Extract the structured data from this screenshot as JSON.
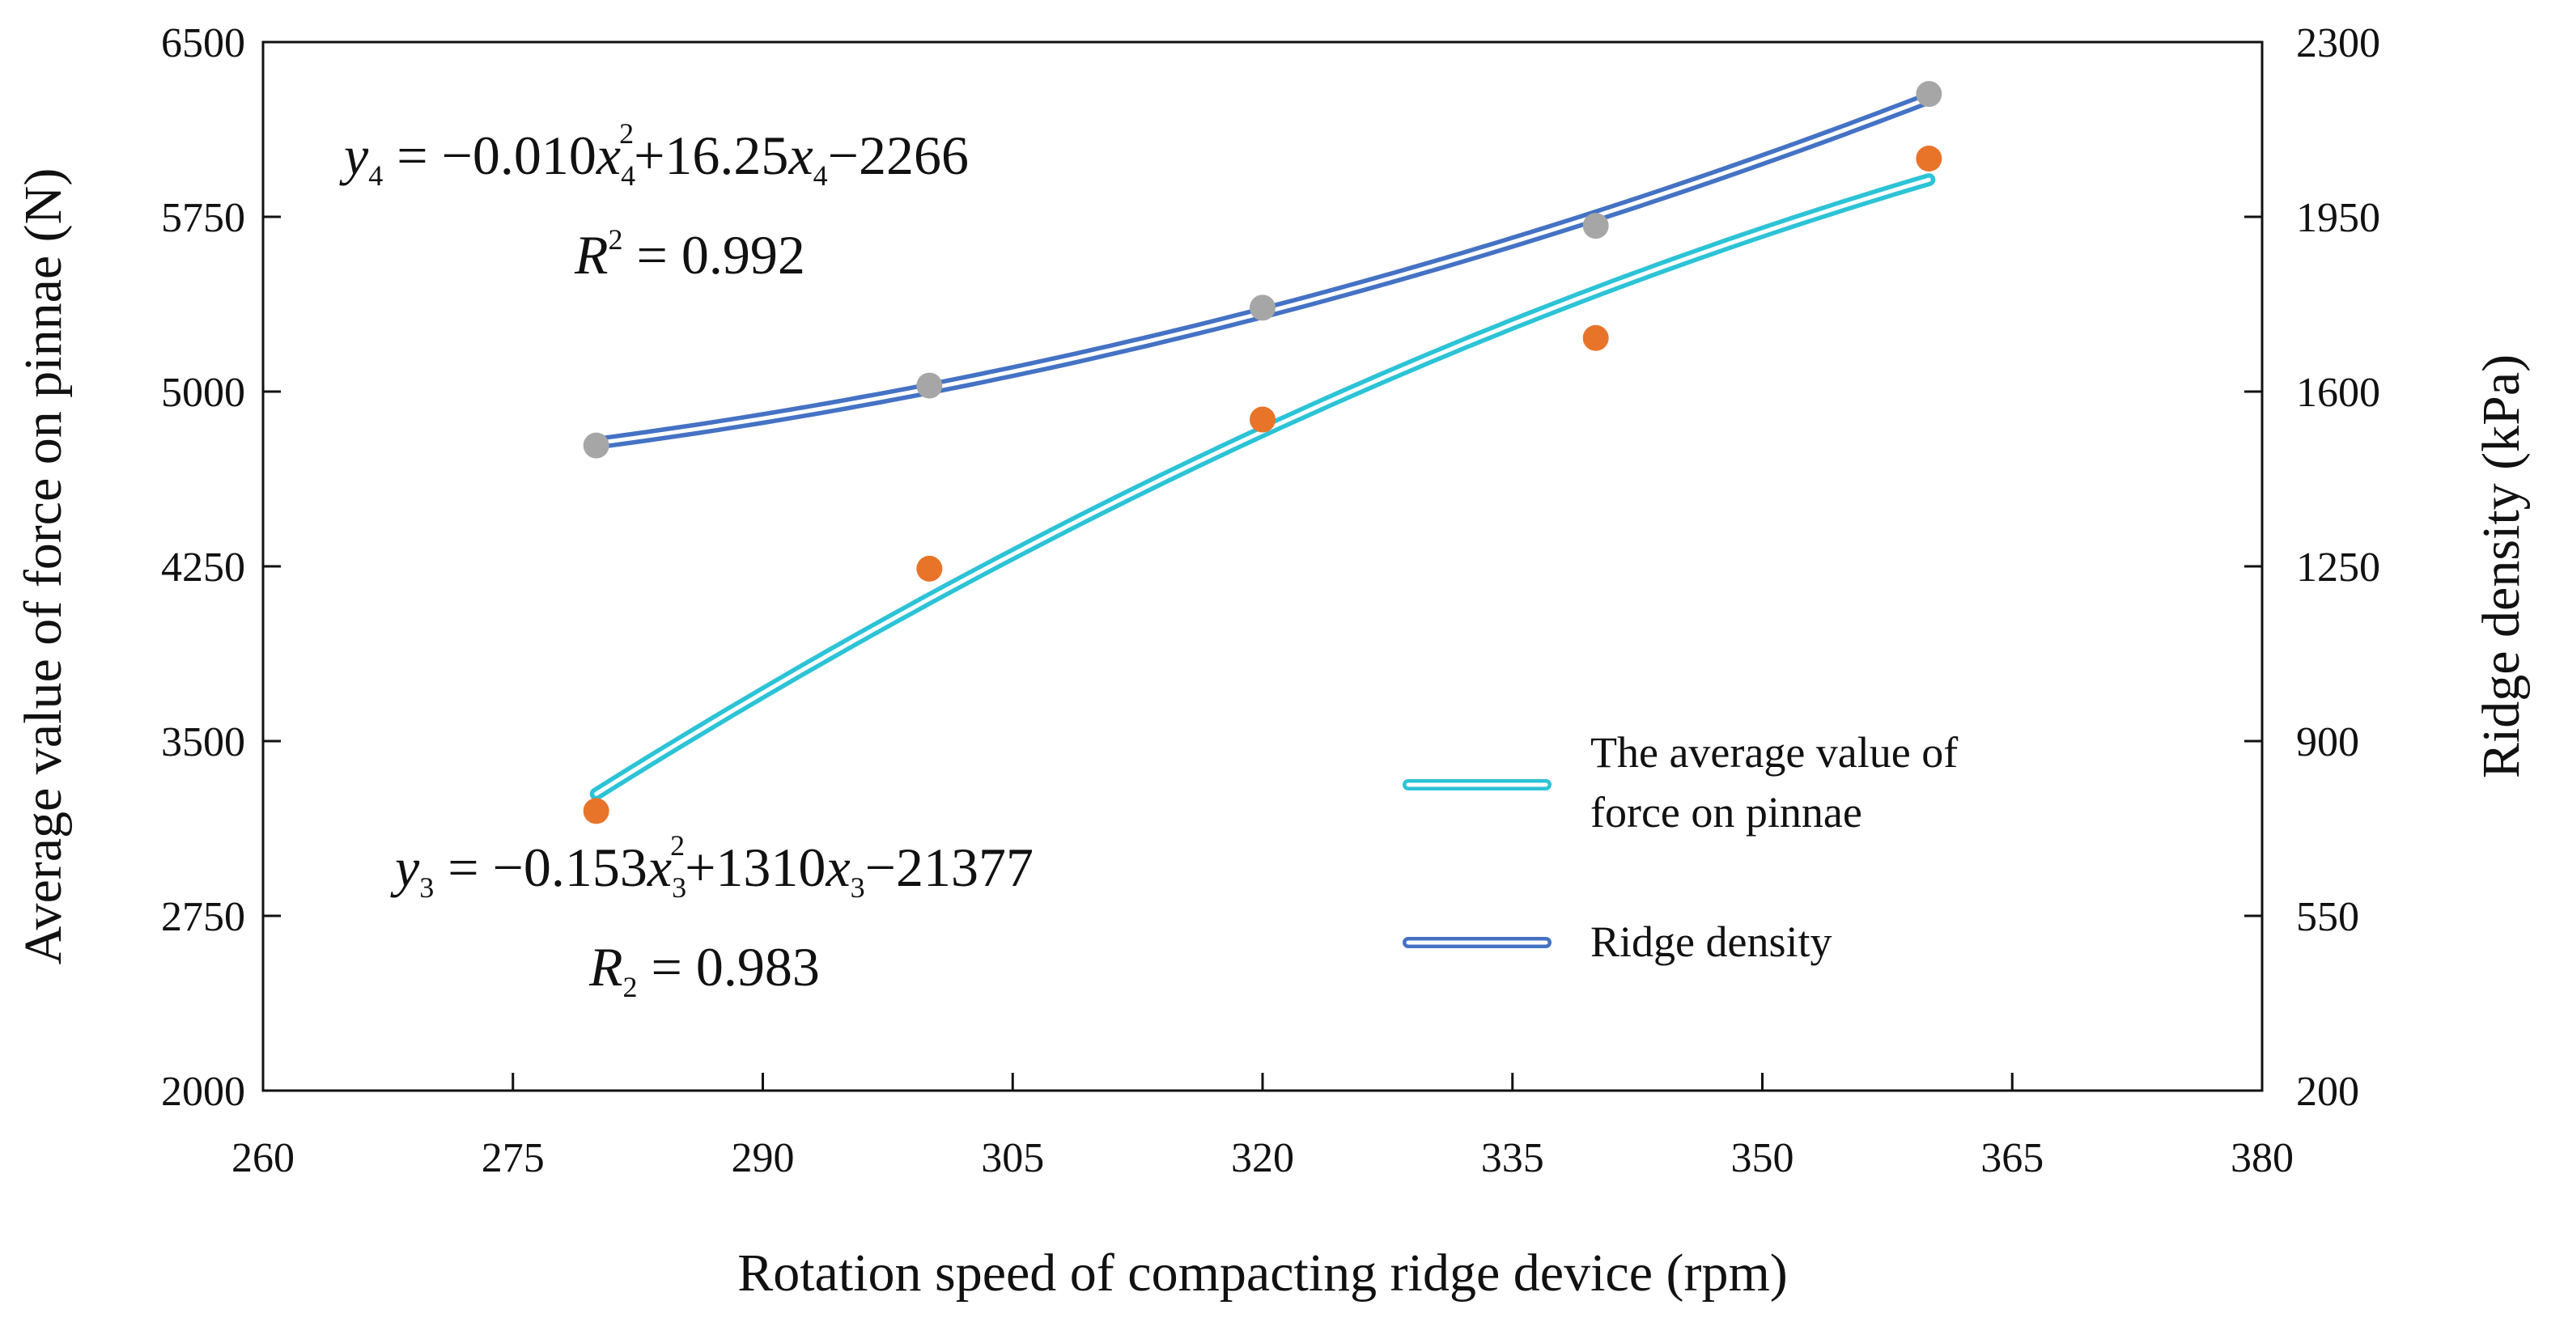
{
  "chart_data": {
    "type": "scatter",
    "title": "",
    "xlabel": "Rotation speed of compacting ridge device (rpm)",
    "ylabel": "Average value of force on pinnae (N)",
    "y2label": "Ridge density (kPa)",
    "xlim": [
      260,
      380
    ],
    "ylim": [
      2000,
      6500
    ],
    "y2lim": [
      200,
      2300
    ],
    "x_ticks": [
      "260",
      "275",
      "290",
      "305",
      "320",
      "335",
      "350",
      "365",
      "380"
    ],
    "y_ticks": [
      "2000",
      "2750",
      "3500",
      "4250",
      "5000",
      "5750",
      "6500"
    ],
    "y2_ticks": [
      "200",
      "550",
      "900",
      "1250",
      "1600",
      "1950",
      "2300"
    ],
    "grid": false,
    "legend_position": "bottom-right",
    "series": [
      {
        "name": "The average value of force on pinnae",
        "legend_lines": [
          "The average value of",
          "force on pinnae"
        ],
        "axis": "left",
        "marker_color": "#E8742A",
        "line_color": "#2CC3D6",
        "x": [
          280,
          300,
          320,
          340,
          360
        ],
        "values": [
          3200,
          4240,
          4880,
          5230,
          6000
        ],
        "fit": {
          "a": -0.153,
          "b": 1310,
          "c": -21377,
          "x_range": [
            280,
            360
          ]
        },
        "equation": {
          "y": "y",
          "sub": "3",
          "text1": " = −0.153",
          "x": "x",
          "sup": "2",
          "text2": "+1310",
          "text3": "−21377"
        },
        "r2": {
          "label": "R",
          "sub": "2",
          "text": " = 0.983"
        }
      },
      {
        "name": "Ridge density",
        "legend_lines": [
          "Ridge density"
        ],
        "axis": "right",
        "marker_color": "#A6A6A6",
        "line_color": "#4472C4",
        "x": [
          280,
          300,
          320,
          340,
          360
        ],
        "values": [
          1492,
          1612,
          1768,
          1932,
          2196
        ],
        "fit": {
          "a": -0.01,
          "b": 16.25,
          "c": -2266,
          "x_range": [
            280,
            360
          ]
        },
        "equation": {
          "y": "y",
          "sub": "4",
          "text1": " = −0.010",
          "x": "x",
          "sup": "2",
          "text2": "+16.25",
          "text3": "−2266"
        },
        "r2": {
          "label": "R",
          "sup": "2",
          "text": " = 0.992"
        }
      }
    ]
  }
}
